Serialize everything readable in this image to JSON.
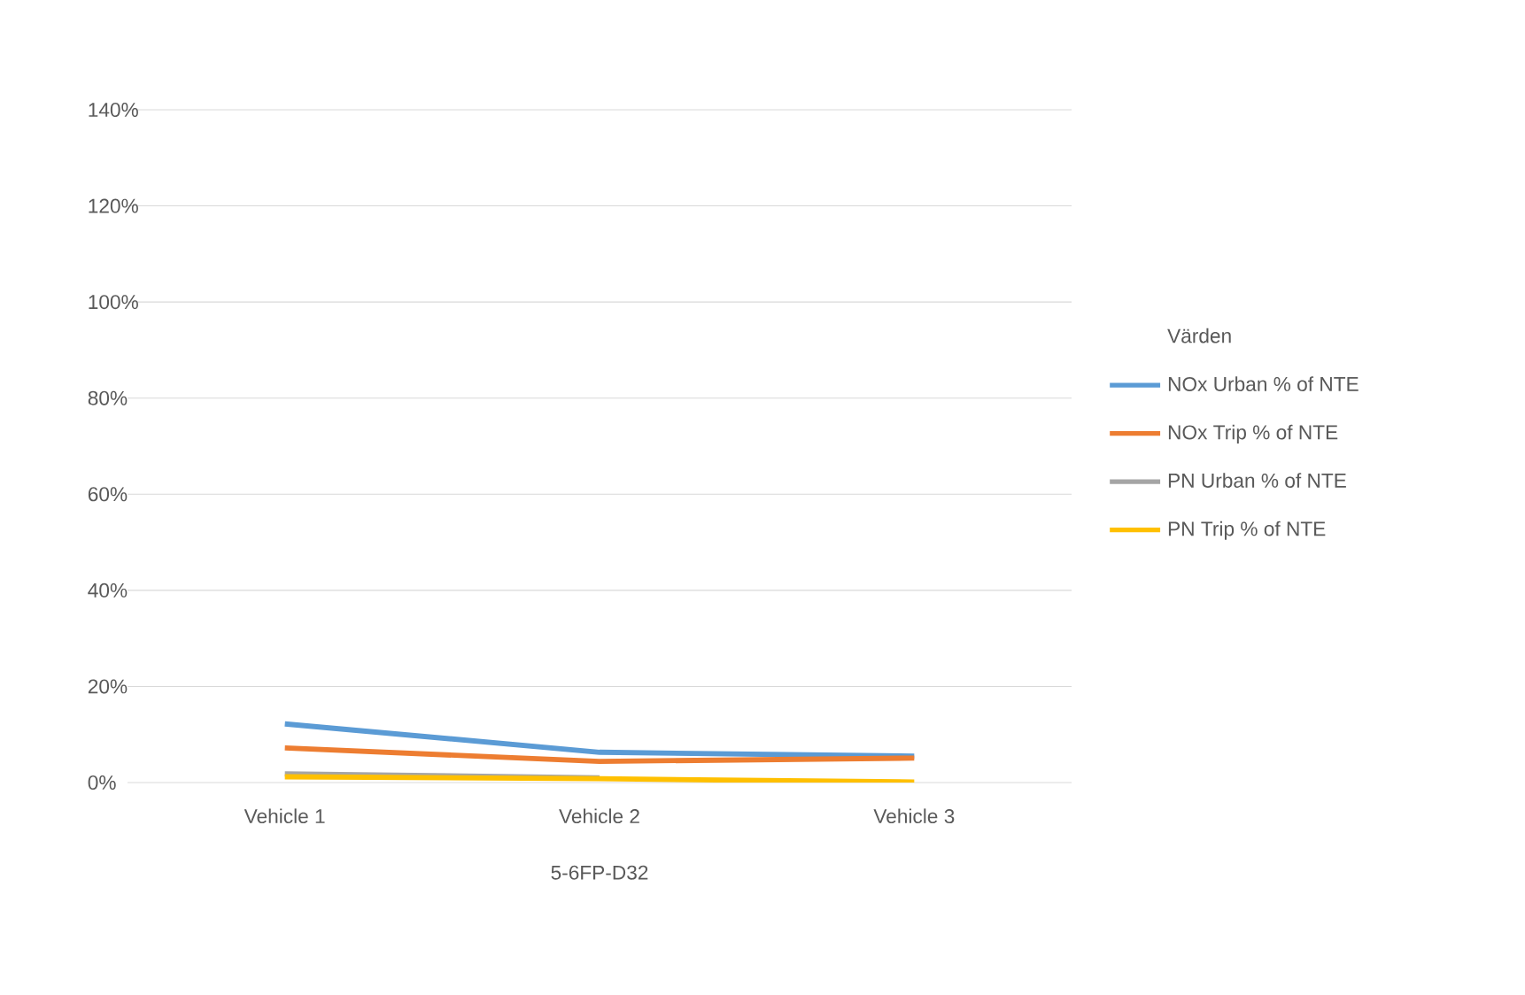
{
  "chart_data": {
    "type": "line",
    "categories": [
      "Vehicle 1",
      "Vehicle 2",
      "Vehicle 3"
    ],
    "xlabel": "5-6FP-D32",
    "legend_title": "Värden",
    "series": [
      {
        "name": "NOx Urban % of NTE",
        "color": "#5b9bd5",
        "values": [
          12.2,
          6.3,
          5.5
        ]
      },
      {
        "name": "NOx Trip % of NTE",
        "color": "#ed7d31",
        "values": [
          7.2,
          4.4,
          5.1
        ]
      },
      {
        "name": "PN Urban % of NTE",
        "color": "#a5a5a5",
        "values": [
          1.8,
          1.0,
          null
        ]
      },
      {
        "name": "PN Trip % of NTE",
        "color": "#ffc000",
        "values": [
          1.2,
          0.8,
          0.1
        ]
      }
    ],
    "ylim": [
      0,
      140
    ],
    "yticks": [
      {
        "value": 0,
        "label": "0%"
      },
      {
        "value": 20,
        "label": "20%"
      },
      {
        "value": 40,
        "label": "40%"
      },
      {
        "value": 60,
        "label": "60%"
      },
      {
        "value": 80,
        "label": "80%"
      },
      {
        "value": 100,
        "label": "100%"
      },
      {
        "value": 120,
        "label": "120%"
      },
      {
        "value": 140,
        "label": "140%"
      }
    ],
    "grid": "y",
    "legend": "right",
    "marker": "none",
    "line_style": "solid"
  }
}
